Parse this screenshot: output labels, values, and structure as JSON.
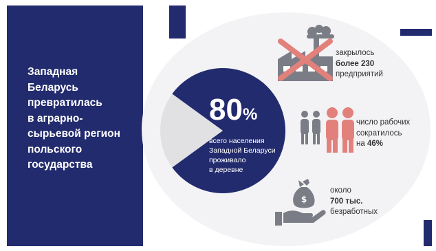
{
  "headline": {
    "lines": [
      "Западная",
      "Беларусь",
      "превратилась",
      "в аграрно-",
      "сырьевой регион",
      "польского",
      "государства"
    ]
  },
  "stat": {
    "percent_number": "80",
    "percent_sign": "%",
    "value": 80,
    "caption_lines": [
      "всего населения",
      "Западной Беларуси",
      "проживало",
      "в деревне"
    ]
  },
  "facts": {
    "factories": {
      "line1": "закрылось",
      "line2_bold": "более 230",
      "line3": "предприятий",
      "icon": "crossed-out-factory-icon"
    },
    "workers": {
      "line1": "число рабочих",
      "line2": "сократилось",
      "line3_prefix": "на ",
      "line3_bold": "46%",
      "icon": "people-icon"
    },
    "unemployed": {
      "line1": "около",
      "line2_bold": "700 тыс.",
      "line3": "безработных",
      "icon": "money-bag-hand-icon"
    }
  },
  "colors": {
    "navy": "#222b6e",
    "accent_red": "#e2817c",
    "gray_icon": "#7b7d86",
    "light_bg": "#f3f3f5",
    "pie_rest": "#e1e1e4"
  }
}
